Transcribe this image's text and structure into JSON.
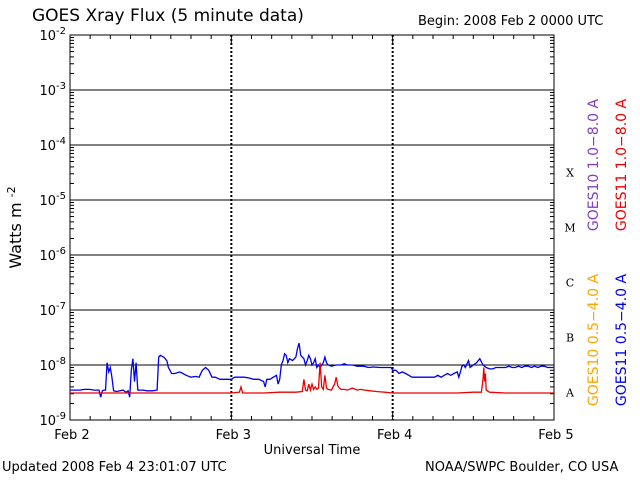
{
  "header": {
    "title": "GOES Xray Flux (5 minute data)",
    "begin": "Begin:  2008 Feb 2 0000 UTC"
  },
  "footer": {
    "updated": "Updated 2008 Feb  4 23:01:07 UTC",
    "credit": "NOAA/SWPC Boulder, CO USA"
  },
  "chart_data": {
    "type": "line",
    "title": "GOES Xray Flux (5 minute data)",
    "xlabel": "Universal Time",
    "ylabel": "Watts m",
    "ylabel_sup": "-2",
    "x_ticks": [
      "Feb 2",
      "Feb 3",
      "Feb 4",
      "Feb 5"
    ],
    "xlim_days": [
      0,
      3
    ],
    "y_scale": "log",
    "ylim": [
      1e-09,
      0.01
    ],
    "y_tick_mantissa": "10",
    "y_tick_exponents": [
      "-2",
      "-3",
      "-4",
      "-5",
      "-6",
      "-7",
      "-8",
      "-9"
    ],
    "flare_classes": [
      "X",
      "M",
      "C",
      "B",
      "A"
    ],
    "grid": true,
    "legend_position": "right",
    "legend": [
      {
        "label": "GOES10 1.0−8.0 A",
        "color": "#8040c0"
      },
      {
        "label": "GOES11 1.0−8.0 A",
        "color": "#ee0000"
      },
      {
        "label": "GOES10 0.5−4.0 A",
        "color": "#ffa500"
      },
      {
        "label": "GOES11 0.5−4.0 A",
        "color": "#0000ee"
      }
    ],
    "series": [
      {
        "name": "GOES11 0.5−4.0 A",
        "color": "#0000ee",
        "points": [
          [
            0.0,
            3.5e-09
          ],
          [
            0.03,
            3.5e-09
          ],
          [
            0.06,
            3.5e-09
          ],
          [
            0.09,
            3.6e-09
          ],
          [
            0.12,
            3.6e-09
          ],
          [
            0.15,
            3.5e-09
          ],
          [
            0.18,
            3.5e-09
          ],
          [
            0.19,
            2.6e-09
          ],
          [
            0.2,
            3.4e-09
          ],
          [
            0.21,
            3.5e-09
          ],
          [
            0.22,
            3.5e-09
          ],
          [
            0.23,
            1.1e-08
          ],
          [
            0.24,
            7.5e-09
          ],
          [
            0.25,
            9e-09
          ],
          [
            0.26,
            6e-09
          ],
          [
            0.27,
            3.4e-09
          ],
          [
            0.29,
            3.3e-09
          ],
          [
            0.31,
            3.4e-09
          ],
          [
            0.33,
            3.5e-09
          ],
          [
            0.34,
            3.3e-09
          ],
          [
            0.35,
            3.2e-09
          ],
          [
            0.36,
            3.4e-09
          ],
          [
            0.37,
            2.6e-09
          ],
          [
            0.38,
            8e-09
          ],
          [
            0.39,
            1.3e-08
          ],
          [
            0.4,
            5e-09
          ],
          [
            0.41,
            1.1e-08
          ],
          [
            0.42,
            3.5e-09
          ],
          [
            0.45,
            3.5e-09
          ],
          [
            0.48,
            3.4e-09
          ],
          [
            0.51,
            3.4e-09
          ],
          [
            0.54,
            3.5e-09
          ],
          [
            0.55,
            1.4e-08
          ],
          [
            0.56,
            1.5e-08
          ],
          [
            0.58,
            1.4e-08
          ],
          [
            0.6,
            1.2e-08
          ],
          [
            0.61,
            9e-09
          ],
          [
            0.62,
            8e-09
          ],
          [
            0.63,
            7e-09
          ],
          [
            0.65,
            7e-09
          ],
          [
            0.68,
            7.5e-09
          ],
          [
            0.7,
            7e-09
          ],
          [
            0.72,
            6.5e-09
          ],
          [
            0.75,
            6e-09
          ],
          [
            0.78,
            6.2e-09
          ],
          [
            0.8,
            6e-09
          ],
          [
            0.82,
            8e-09
          ],
          [
            0.84,
            9e-09
          ],
          [
            0.86,
            8e-09
          ],
          [
            0.88,
            6e-09
          ],
          [
            0.9,
            6e-09
          ],
          [
            0.93,
            5.5e-09
          ],
          [
            0.96,
            5.5e-09
          ],
          [
            0.99,
            5.5e-09
          ],
          [
            1.0,
            5.5e-09
          ],
          [
            1.02,
            6e-09
          ],
          [
            1.05,
            6e-09
          ],
          [
            1.08,
            6e-09
          ],
          [
            1.11,
            5.8e-09
          ],
          [
            1.14,
            5.5e-09
          ],
          [
            1.17,
            5.5e-09
          ],
          [
            1.2,
            5e-09
          ],
          [
            1.21,
            4e-09
          ],
          [
            1.22,
            5.5e-09
          ],
          [
            1.24,
            5.5e-09
          ],
          [
            1.26,
            6e-09
          ],
          [
            1.28,
            6.5e-09
          ],
          [
            1.29,
            4.5e-09
          ],
          [
            1.3,
            5.5e-09
          ],
          [
            1.31,
            1e-08
          ],
          [
            1.32,
            1.2e-08
          ],
          [
            1.33,
            1.6e-08
          ],
          [
            1.34,
            1.5e-08
          ],
          [
            1.35,
            1.1e-08
          ],
          [
            1.36,
            1.3e-08
          ],
          [
            1.38,
            1.2e-08
          ],
          [
            1.4,
            1.4e-08
          ],
          [
            1.41,
            2e-08
          ],
          [
            1.42,
            2.5e-08
          ],
          [
            1.43,
            1.5e-08
          ],
          [
            1.44,
            1.4e-08
          ],
          [
            1.45,
            1.3e-08
          ],
          [
            1.46,
            1e-08
          ],
          [
            1.47,
            1.2e-08
          ],
          [
            1.48,
            1.5e-08
          ],
          [
            1.49,
            1.3e-08
          ],
          [
            1.5,
            1e-08
          ],
          [
            1.51,
            1.1e-08
          ],
          [
            1.52,
            1.3e-08
          ],
          [
            1.53,
            9e-09
          ],
          [
            1.54,
            1e-08
          ],
          [
            1.55,
            9e-09
          ],
          [
            1.57,
            1.1e-08
          ],
          [
            1.58,
            1.4e-08
          ],
          [
            1.59,
            1.1e-08
          ],
          [
            1.6,
            1e-08
          ],
          [
            1.62,
            9.5e-09
          ],
          [
            1.65,
            1e-08
          ],
          [
            1.68,
            1e-08
          ],
          [
            1.7,
            1.05e-08
          ],
          [
            1.72,
            1e-08
          ],
          [
            1.75,
            1e-08
          ],
          [
            1.78,
            9.5e-09
          ],
          [
            1.82,
            9.5e-09
          ],
          [
            1.85,
            9e-09
          ],
          [
            1.88,
            9.2e-09
          ],
          [
            1.92,
            9e-09
          ],
          [
            1.96,
            9e-09
          ],
          [
            1.99,
            9e-09
          ],
          [
            2.0,
            8e-09
          ],
          [
            2.02,
            8e-09
          ],
          [
            2.04,
            7e-09
          ],
          [
            2.06,
            7.5e-09
          ],
          [
            2.08,
            7e-09
          ],
          [
            2.1,
            6.5e-09
          ],
          [
            2.12,
            6e-09
          ],
          [
            2.14,
            6e-09
          ],
          [
            2.16,
            6e-09
          ],
          [
            2.18,
            6e-09
          ],
          [
            2.2,
            6e-09
          ],
          [
            2.22,
            6e-09
          ],
          [
            2.24,
            6e-09
          ],
          [
            2.26,
            6e-09
          ],
          [
            2.28,
            6.5e-09
          ],
          [
            2.3,
            6e-09
          ],
          [
            2.32,
            6.5e-09
          ],
          [
            2.34,
            7e-09
          ],
          [
            2.36,
            6.5e-09
          ],
          [
            2.38,
            7e-09
          ],
          [
            2.4,
            7.5e-09
          ],
          [
            2.41,
            6e-09
          ],
          [
            2.42,
            7.5e-09
          ],
          [
            2.43,
            9.5e-09
          ],
          [
            2.44,
            1e-08
          ],
          [
            2.45,
            9e-09
          ],
          [
            2.47,
            1.2e-08
          ],
          [
            2.48,
            9e-09
          ],
          [
            2.5,
            1e-08
          ],
          [
            2.52,
            1.1e-08
          ],
          [
            2.54,
            1.3e-08
          ],
          [
            2.56,
            1e-08
          ],
          [
            2.58,
            9e-09
          ],
          [
            2.6,
            8.5e-09
          ],
          [
            2.62,
            8.5e-09
          ],
          [
            2.64,
            9e-09
          ],
          [
            2.66,
            9e-09
          ],
          [
            2.68,
            9e-09
          ],
          [
            2.7,
            9e-09
          ],
          [
            2.72,
            9.5e-09
          ],
          [
            2.74,
            9e-09
          ],
          [
            2.76,
            9e-09
          ],
          [
            2.78,
            9.5e-09
          ],
          [
            2.8,
            9e-09
          ],
          [
            2.82,
            9.5e-09
          ],
          [
            2.84,
            9.5e-09
          ],
          [
            2.86,
            9e-09
          ],
          [
            2.88,
            9.5e-09
          ],
          [
            2.9,
            9e-09
          ],
          [
            2.92,
            9.5e-09
          ],
          [
            2.94,
            9.5e-09
          ],
          [
            2.96,
            9e-09
          ],
          [
            2.98,
            9e-09
          ],
          [
            3.0,
            9e-09
          ]
        ]
      },
      {
        "name": "GOES11 1.0−8.0 A",
        "color": "#ee0000",
        "points": [
          [
            0.0,
            3.1e-09
          ],
          [
            0.5,
            3.1e-09
          ],
          [
            1.0,
            3.1e-09
          ],
          [
            1.05,
            3.2e-09
          ],
          [
            1.06,
            4e-09
          ],
          [
            1.07,
            3.1e-09
          ],
          [
            1.1,
            3.1e-09
          ],
          [
            1.2,
            3.1e-09
          ],
          [
            1.3,
            3.2e-09
          ],
          [
            1.4,
            3.2e-09
          ],
          [
            1.44,
            3.3e-09
          ],
          [
            1.45,
            5.5e-09
          ],
          [
            1.46,
            3.5e-09
          ],
          [
            1.47,
            3.4e-09
          ],
          [
            1.48,
            4.5e-09
          ],
          [
            1.49,
            3.5e-09
          ],
          [
            1.5,
            4.5e-09
          ],
          [
            1.51,
            3.6e-09
          ],
          [
            1.52,
            4e-09
          ],
          [
            1.53,
            3.6e-09
          ],
          [
            1.54,
            3.8e-09
          ],
          [
            1.55,
            1.1e-08
          ],
          [
            1.56,
            4e-09
          ],
          [
            1.57,
            3.6e-09
          ],
          [
            1.58,
            6.5e-09
          ],
          [
            1.59,
            3.8e-09
          ],
          [
            1.6,
            3.6e-09
          ],
          [
            1.62,
            3.5e-09
          ],
          [
            1.64,
            4.5e-09
          ],
          [
            1.65,
            6e-09
          ],
          [
            1.66,
            4.2e-09
          ],
          [
            1.67,
            3.8e-09
          ],
          [
            1.68,
            3.6e-09
          ],
          [
            1.7,
            3.6e-09
          ],
          [
            1.72,
            3.5e-09
          ],
          [
            1.75,
            3.8e-09
          ],
          [
            1.78,
            3.5e-09
          ],
          [
            1.8,
            3.6e-09
          ],
          [
            1.83,
            3.5e-09
          ],
          [
            1.86,
            3.4e-09
          ],
          [
            1.9,
            3.3e-09
          ],
          [
            1.95,
            3.2e-09
          ],
          [
            2.0,
            3.1e-09
          ],
          [
            2.1,
            3.1e-09
          ],
          [
            2.2,
            3.1e-09
          ],
          [
            2.3,
            3.1e-09
          ],
          [
            2.4,
            3.1e-09
          ],
          [
            2.5,
            3.2e-09
          ],
          [
            2.55,
            3.2e-09
          ],
          [
            2.56,
            5.5e-09
          ],
          [
            2.565,
            9e-09
          ],
          [
            2.57,
            5e-09
          ],
          [
            2.575,
            7e-09
          ],
          [
            2.58,
            3.5e-09
          ],
          [
            2.6,
            3.2e-09
          ],
          [
            2.7,
            3.1e-09
          ],
          [
            2.8,
            3.1e-09
          ],
          [
            2.9,
            3.1e-09
          ],
          [
            3.0,
            3.1e-09
          ]
        ]
      }
    ]
  }
}
